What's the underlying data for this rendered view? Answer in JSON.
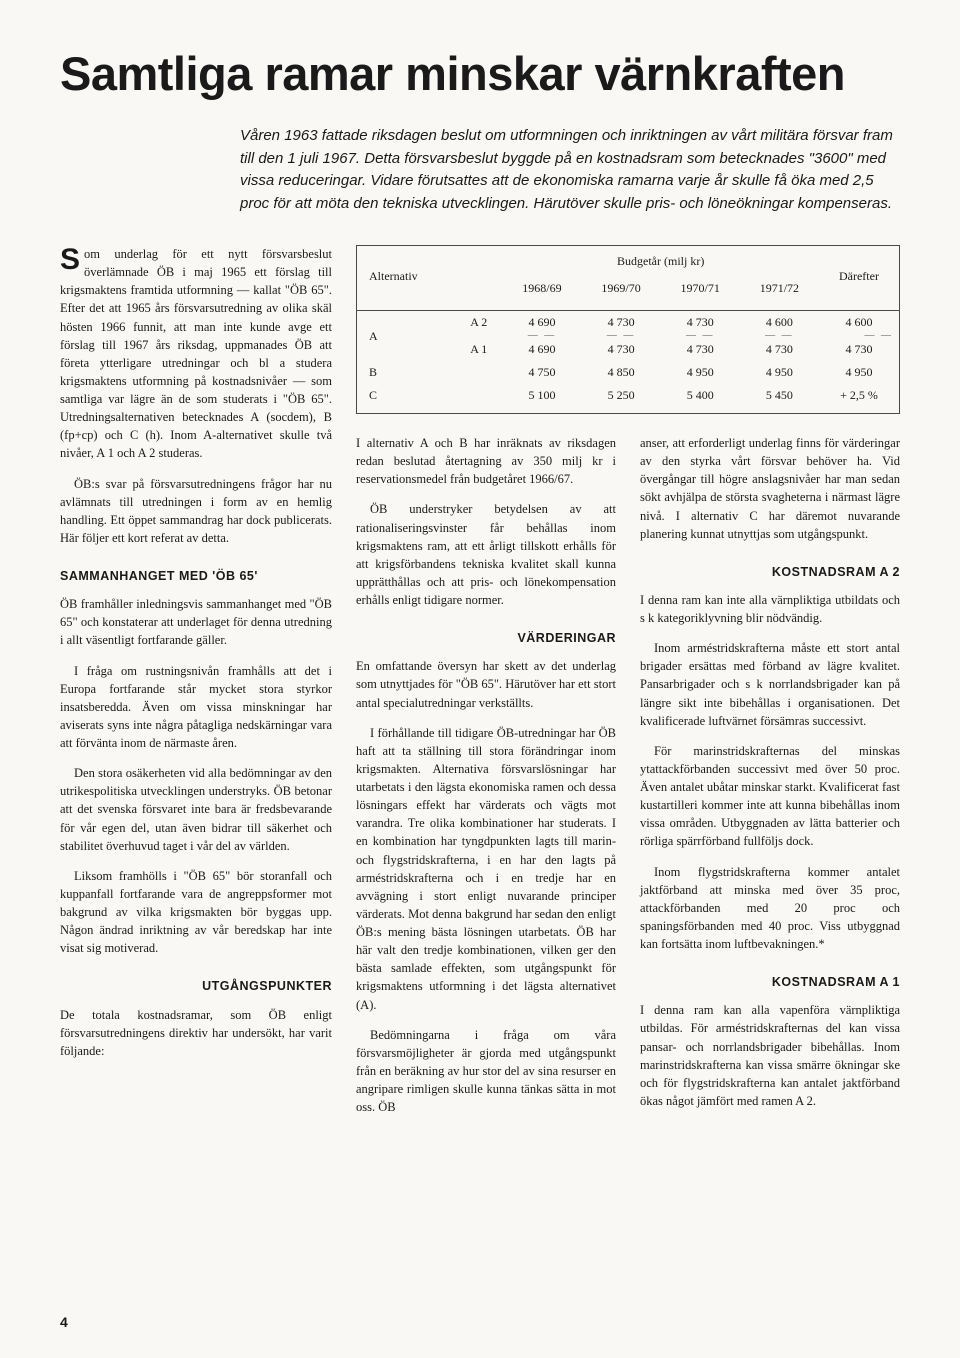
{
  "headline": "Samtliga ramar minskar värnkraften",
  "intro": "Våren 1963 fattade riksdagen beslut om utformningen och inriktningen av vårt militära försvar fram till den 1 juli 1967. Detta försvarsbeslut byggde på en kostnadsram som betecknades \"3600\" med vissa reduceringar. Vidare förutsattes att de ekonomiska ramarna varje år skulle få öka med 2,5 proc för att möta den tekniska utvecklingen. Härutöver skulle pris- och löneökningar kompenseras.",
  "table": {
    "header_alternativ": "Alternativ",
    "header_budget": "Budgetår (milj kr)",
    "header_darefter": "Därefter",
    "years": [
      "1968/69",
      "1969/70",
      "1970/71",
      "1971/72"
    ],
    "rows": [
      {
        "label": "A",
        "sub": "A 2",
        "cells": [
          "4 690",
          "4 730",
          "4 730",
          "4 600",
          "4 600"
        ]
      },
      {
        "label": "",
        "sub": "A 1",
        "cells": [
          "4 690",
          "4 730",
          "4 730",
          "4 730",
          "4 730"
        ]
      },
      {
        "label": "B",
        "sub": "",
        "cells": [
          "4 750",
          "4 850",
          "4 950",
          "4 950",
          "4 950"
        ]
      },
      {
        "label": "C",
        "sub": "",
        "cells": [
          "5 100",
          "5 250",
          "5 400",
          "5 450",
          "+ 2,5 %"
        ]
      }
    ]
  },
  "col1": {
    "p1": "Som underlag för ett nytt försvarsbeslut överlämnade ÖB i maj 1965 ett förslag till krigsmaktens framtida utformning — kallat \"ÖB 65\". Efter det att 1965 års försvarsutredning av olika skäl hösten 1966 funnit, att man inte kunde avge ett förslag till 1967 års riksdag, uppmanades ÖB att företa ytterligare utredningar och bl a studera krigsmaktens utformning på kostnadsnivåer — som samtliga var lägre än de som studerats i \"ÖB 65\". Utredningsalternativen betecknades A (socdem), B (fp+cp) och C (h). Inom A-alternativet skulle två nivåer, A 1 och A 2 studeras.",
    "p2": "ÖB:s svar på försvarsutredningens frågor har nu avlämnats till utredningen i form av en hemlig handling. Ett öppet sammandrag har dock publicerats. Här följer ett kort referat av detta.",
    "h1": "SAMMANHANGET MED 'ÖB 65'",
    "p3": "ÖB framhåller inledningsvis sammanhanget med \"ÖB 65\" och konstaterar att underlaget för denna utredning i allt väsentligt fortfarande gäller.",
    "p4": "I fråga om rustningsnivån framhålls att det i Europa fortfarande står mycket stora styrkor insatsberedda. Även om vissa minskningar har aviserats syns inte några påtagliga nedskärningar vara att förvänta inom de närmaste åren.",
    "p5": "Den stora osäkerheten vid alla bedömningar av den utrikespolitiska utvecklingen understryks. ÖB betonar att det svenska försvaret inte bara är fredsbevarande för vår egen del, utan även bidrar till säkerhet och stabilitet överhuvud taget i vår del av världen.",
    "p6": "Liksom framhölls i \"ÖB 65\" bör storanfall och kuppanfall fortfarande vara de angreppsformer mot bakgrund av vilka krigsmakten bör byggas upp. Någon ändrad inriktning av vår beredskap har inte visat sig motiverad.",
    "h2": "UTGÅNGSPUNKTER",
    "p7": "De totala kostnadsramar, som ÖB enligt försvarsutredningens direktiv har undersökt, har varit följande:"
  },
  "col2": {
    "p1": "I alternativ A och B har inräknats av riksdagen redan beslutad återtagning av 350 milj kr i reservationsmedel från budgetåret 1966/67.",
    "p2": "ÖB understryker betydelsen av att rationaliseringsvinster får behållas inom krigsmaktens ram, att ett årligt tillskott erhålls för att krigsförbandens tekniska kvalitet skall kunna upprätthållas och att pris- och lönekompensation erhålls enligt tidigare normer.",
    "h1": "VÄRDERINGAR",
    "p3": "En omfattande översyn har skett av det underlag som utnyttjades för \"ÖB 65\". Härutöver har ett stort antal specialutredningar verkställts.",
    "p4": "I förhållande till tidigare ÖB-utredningar har ÖB haft att ta ställning till stora förändringar inom krigsmakten. Alternativa försvarslösningar har utarbetats i den lägsta ekonomiska ramen och dessa lösningars effekt har värderats och vägts mot varandra. Tre olika kombinationer har studerats. I en kombination har tyngdpunkten lagts till marin- och flygstridskrafterna, i en har den lagts på arméstridskrafterna och i en tredje har en avvägning i stort enligt nuvarande principer värderats. Mot denna bakgrund har sedan den enligt ÖB:s mening bästa lösningen utarbetats. ÖB har här valt den tredje kombinationen, vilken ger den bästa samlade effekten, som utgångspunkt för krigsmaktens utformning i det lägsta alternativet (A).",
    "p5": "Bedömningarna i fråga om våra försvarsmöjligheter är gjorda med utgångspunkt från en beräkning av hur stor del av sina resurser en angripare rimligen skulle kunna tänkas sätta in mot oss. ÖB"
  },
  "col3": {
    "p0": "anser, att erforderligt underlag finns för värderingar av den styrka vårt försvar behöver ha. Vid övergångar till högre anslagsnivåer har man sedan sökt avhjälpa de största svagheterna i närmast lägre nivå. I alternativ C har däremot nuvarande planering kunnat utnyttjas som utgångspunkt.",
    "h1": "KOSTNADSRAM A 2",
    "p1": "I denna ram kan inte alla värnpliktiga utbildats och s k kategoriklyvning blir nödvändig.",
    "p2": "Inom arméstridskrafterna måste ett stort antal brigader ersättas med förband av lägre kvalitet. Pansarbrigader och s k norrlandsbrigader kan på längre sikt inte bibehållas i organisationen. Det kvalificerade luftvärnet försämras successivt.",
    "p3": "För marinstridskrafternas del minskas ytattackförbanden successivt med över 50 proc. Även antalet ubåtar minskar starkt. Kvalificerat fast kustartilleri kommer inte att kunna bibehållas inom vissa områden. Utbyggnaden av lätta batterier och rörliga spärrförband fullföljs dock.",
    "p4": "Inom flygstridskrafterna kommer antalet jaktförband att minska med över 35 proc, attackförbanden med 20 proc och spaningsförbanden med 40 proc. Viss utbyggnad kan fortsätta inom luftbevakningen.*",
    "h2": "KOSTNADSRAM A 1",
    "p5": "I denna ram kan alla vapenföra värnpliktiga utbildas. För arméstridskrafternas del kan vissa pansar- och norrlandsbrigader bibehållas. Inom marinstridskrafterna kan vissa smärre ökningar ske och för flygstridskrafterna kan antalet jaktförband ökas något jämfört med ramen A 2."
  },
  "page_number": "4"
}
